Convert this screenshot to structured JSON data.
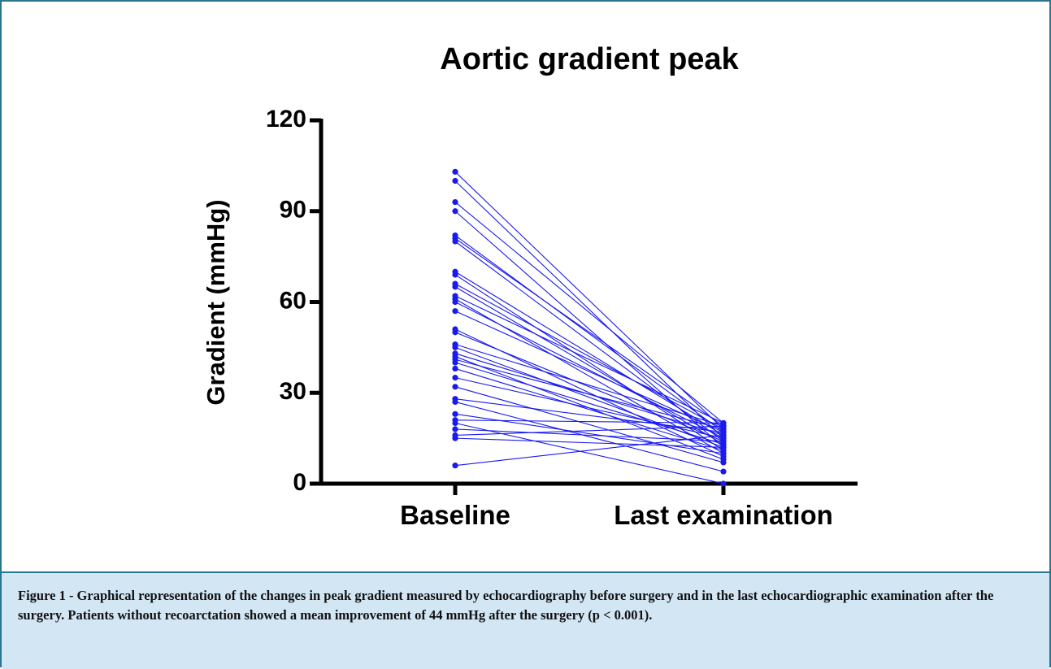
{
  "chart_data": {
    "type": "paired-line",
    "title": "Aortic gradient peak",
    "y_label": "Gradient (mmHg)",
    "categories": [
      "Baseline",
      "Last examination"
    ],
    "color": "#1a1aef",
    "ylim": [
      0,
      120
    ],
    "yticks": [
      0,
      30,
      60,
      90,
      120
    ],
    "series": [
      {
        "values": [
          103,
          18
        ]
      },
      {
        "values": [
          100,
          15
        ]
      },
      {
        "values": [
          93,
          20
        ]
      },
      {
        "values": [
          90,
          12
        ]
      },
      {
        "values": [
          82,
          17
        ]
      },
      {
        "values": [
          81,
          19
        ]
      },
      {
        "values": [
          80,
          14
        ]
      },
      {
        "values": [
          70,
          16
        ]
      },
      {
        "values": [
          69,
          11
        ]
      },
      {
        "values": [
          66,
          18
        ]
      },
      {
        "values": [
          65,
          13
        ]
      },
      {
        "values": [
          62,
          20
        ]
      },
      {
        "values": [
          61,
          10
        ]
      },
      {
        "values": [
          60,
          15
        ]
      },
      {
        "values": [
          57,
          17
        ]
      },
      {
        "values": [
          51,
          9
        ]
      },
      {
        "values": [
          50,
          14
        ]
      },
      {
        "values": [
          46,
          19
        ]
      },
      {
        "values": [
          45,
          12
        ]
      },
      {
        "values": [
          43,
          16
        ]
      },
      {
        "values": [
          42,
          8
        ]
      },
      {
        "values": [
          41,
          18
        ]
      },
      {
        "values": [
          40,
          13
        ]
      },
      {
        "values": [
          38,
          11
        ]
      },
      {
        "values": [
          35,
          15
        ]
      },
      {
        "values": [
          32,
          7
        ]
      },
      {
        "values": [
          28,
          17
        ]
      },
      {
        "values": [
          27,
          4
        ]
      },
      {
        "values": [
          23,
          10
        ]
      },
      {
        "values": [
          21,
          20
        ]
      },
      {
        "values": [
          20,
          0
        ]
      },
      {
        "values": [
          18,
          14
        ]
      },
      {
        "values": [
          16,
          19
        ]
      },
      {
        "values": [
          15,
          12
        ]
      },
      {
        "values": [
          6,
          16
        ]
      }
    ]
  },
  "caption": "Figure 1 - Graphical representation of the changes in peak gradient measured by echocardiography before surgery and in the last echocardiographic examination after the surgery. Patients without recoarctation showed a mean improvement of 44 mmHg after the surgery (p < 0.001)."
}
